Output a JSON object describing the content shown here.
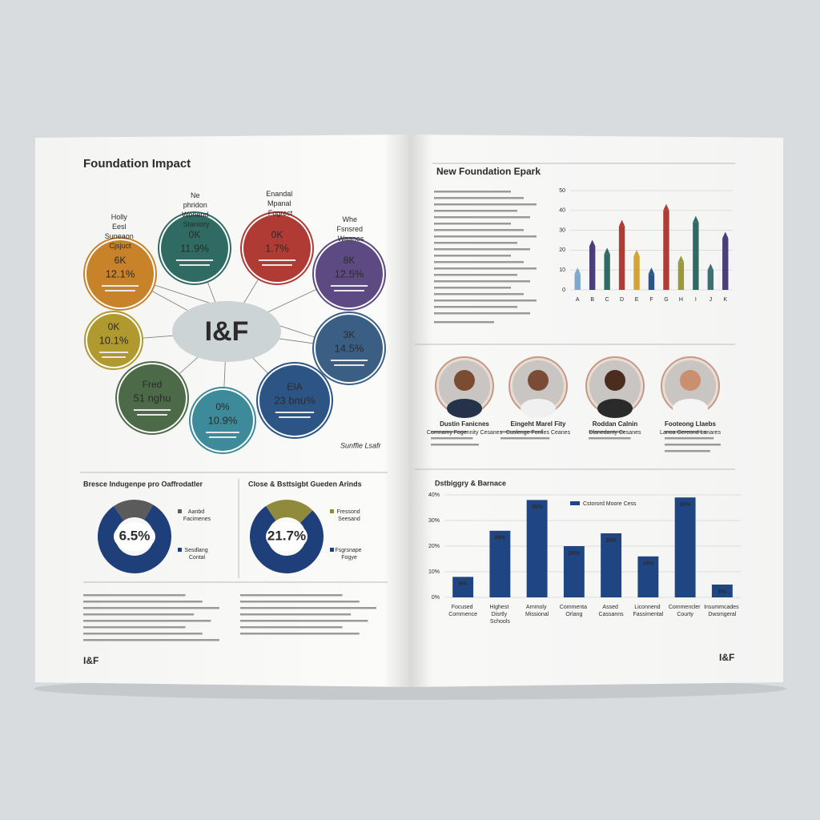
{
  "left_page": {
    "title": "Foundation Impact",
    "center": "I&F",
    "bubbles": [
      {
        "title": "6K",
        "detail": "12.1%",
        "caption": "Holly Eesl Suneaon Cjsjuct",
        "color": "#c8822a"
      },
      {
        "title": "0K",
        "detail": "11.9%",
        "caption": "Ne phridon Wonend Staniory",
        "color": "#2f6b62"
      },
      {
        "title": "0K",
        "detail": "1.7%",
        "caption": "Enandal Mpanal Fogrect",
        "color": "#b03a34"
      },
      {
        "title": "8K",
        "detail": "12.5%",
        "caption": "Whe Fsnsred Waanes",
        "color": "#5d4a82"
      },
      {
        "title": "0K",
        "detail": "10.1%",
        "color": "#b0992f"
      },
      {
        "title": "3K",
        "detail": "14.5%",
        "color": "#3b5e84"
      },
      {
        "title": "Fred",
        "detail": "51 nghu",
        "color": "#4d6a48"
      },
      {
        "title": "0%",
        "detail": "10.9%",
        "color": "#3d8a9a"
      },
      {
        "title": "EIA",
        "detail": "23 bnu%",
        "color": "#2c5585"
      }
    ],
    "signature": "Sunffie Lsafr",
    "section_left": "Bresce Indugenpe pro Oaffrodatler",
    "section_right": "Close & Bsttsigbt Gueden Arinds",
    "logo": "I&F"
  },
  "right_page": {
    "title": "New Foundation Epark",
    "profiles": [
      {
        "name": "Dustin Fanicnes",
        "role": "Comnamy Fogennity Cesanes"
      },
      {
        "name": "Eingeht Marel Fity",
        "role": "Cuslenge Fonlles Ceanes"
      },
      {
        "name": "Roddan Calnin",
        "role": "Dlanedanty Cesanes"
      },
      {
        "name": "Footeong Llaebs",
        "role": "Lanoa Gereond Lanares"
      }
    ],
    "section": "Dstbiggry & Barnace",
    "logo": "I&F"
  },
  "chart_data": [
    {
      "type": "bar",
      "categories": [
        "A",
        "B",
        "C",
        "D",
        "E",
        "F",
        "G",
        "H",
        "I",
        "J",
        "K"
      ],
      "values": [
        8,
        22,
        18,
        32,
        17,
        8,
        40,
        14,
        34,
        10,
        26
      ],
      "colors": [
        "#7fa9c9",
        "#4a3f78",
        "#2f6b62",
        "#b03a34",
        "#d3a338",
        "#2c5585",
        "#b03a34",
        "#9a9a3a",
        "#2f6b62",
        "#3f6f70",
        "#4a3f78"
      ],
      "ylim": [
        0,
        50
      ],
      "yticks": [
        0,
        10,
        20,
        30,
        40,
        50
      ],
      "grid": true
    },
    {
      "type": "donut",
      "center_label": "6.5%",
      "labels": [
        "Aanbd Facimenes",
        "Sesdlang Contal"
      ],
      "values": [
        18,
        82
      ],
      "colors": [
        "#5b5b5b",
        "#1f3f7a"
      ]
    },
    {
      "type": "donut",
      "center_label": "21.7%",
      "labels": [
        "Fressond Seesand",
        "Fsgrsnape Fogye"
      ],
      "values": [
        22,
        78
      ],
      "colors": [
        "#8f8a3c",
        "#1f3f7a"
      ]
    },
    {
      "type": "bar",
      "categories": [
        "Focused Commence",
        "Highest Disrtly Schools",
        "Arnmoly Missional",
        "Commenta Orlang",
        "Assed Cassanns",
        "Liconnend Fassimental",
        "Commencler Courty",
        "Insummcades Dwsmgeral"
      ],
      "series": [
        {
          "name": "Cstorord Moore Cess",
          "color": "#1f4683",
          "values": [
            8,
            26,
            38,
            20,
            25,
            16,
            39,
            5
          ],
          "value_labels": [
            "8%",
            "26%",
            "38%",
            "20%",
            "25%",
            "16%",
            "39%",
            "5%"
          ]
        }
      ],
      "ylim": [
        0,
        40
      ],
      "yticks": [
        {
          "value": 0,
          "label": "0%"
        },
        {
          "value": 10,
          "label": "10%"
        },
        {
          "value": 20,
          "label": "20%"
        },
        {
          "value": 30,
          "label": "30%"
        },
        {
          "value": 40,
          "label": "40%"
        }
      ],
      "grid": true
    }
  ]
}
